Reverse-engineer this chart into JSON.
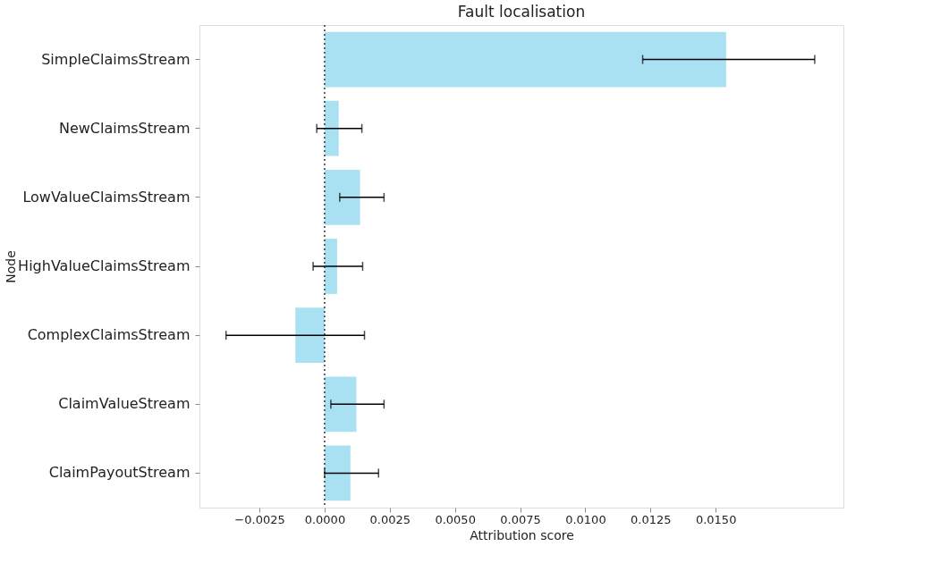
{
  "chart_data": {
    "type": "bar",
    "orientation": "horizontal",
    "title": "Fault localisation",
    "xlabel": "Attribution score",
    "ylabel": "Node",
    "categories": [
      "SimpleClaimsStream",
      "NewClaimsStream",
      "LowValueClaimsStream",
      "HighValueClaimsStream",
      "ComplexClaimsStream",
      "ClaimValueStream",
      "ClaimPayoutStream"
    ],
    "values": [
      0.0154,
      0.00054,
      0.00136,
      0.00048,
      -0.00112,
      0.00122,
      0.00099
    ],
    "errors": [
      [
        0.0122,
        0.0188
      ],
      [
        -0.0003,
        0.00143
      ],
      [
        0.00058,
        0.00228
      ],
      [
        -0.00044,
        0.00146
      ],
      [
        -0.00378,
        0.00153
      ],
      [
        0.00024,
        0.00228
      ],
      [
        0.0,
        0.00207
      ]
    ],
    "color": "#a9e1f3",
    "xlim": [
      -0.0048,
      0.0199
    ],
    "xticks": [
      {
        "value": -0.0025,
        "label": "−0.0025"
      },
      {
        "value": 0,
        "label": "0.0000"
      },
      {
        "value": 0.0025,
        "label": "0.0025"
      },
      {
        "value": 0.005,
        "label": "0.0050"
      },
      {
        "value": 0.0075,
        "label": "0.0075"
      },
      {
        "value": 0.01,
        "label": "0.0100"
      },
      {
        "value": 0.0125,
        "label": "0.0125"
      },
      {
        "value": 0.015,
        "label": "0.0150"
      }
    ],
    "ref_lines": [
      {
        "axis": "x",
        "value": 0,
        "label": null,
        "color": "#333333",
        "line_style": "dotted"
      }
    ],
    "grid": false,
    "legend": false
  }
}
